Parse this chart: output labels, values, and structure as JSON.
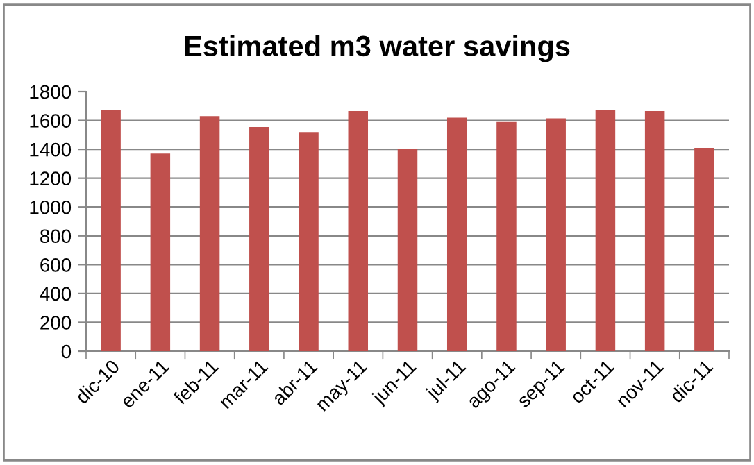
{
  "chart_data": {
    "type": "bar",
    "title": "Estimated m3 water savings",
    "categories": [
      "dic-10",
      "ene-11",
      "feb-11",
      "mar-11",
      "abr-11",
      "may-11",
      "jun-11",
      "jul-11",
      "ago-11",
      "sep-11",
      "oct-11",
      "nov-11",
      "dic-11"
    ],
    "values": [
      1675,
      1370,
      1630,
      1555,
      1520,
      1665,
      1400,
      1620,
      1590,
      1615,
      1675,
      1665,
      1410
    ],
    "color": "#c0504d",
    "ylim": [
      0,
      1800
    ],
    "yticks": [
      0,
      200,
      400,
      600,
      800,
      1000,
      1200,
      1400,
      1600,
      1800
    ],
    "grid": "y"
  }
}
